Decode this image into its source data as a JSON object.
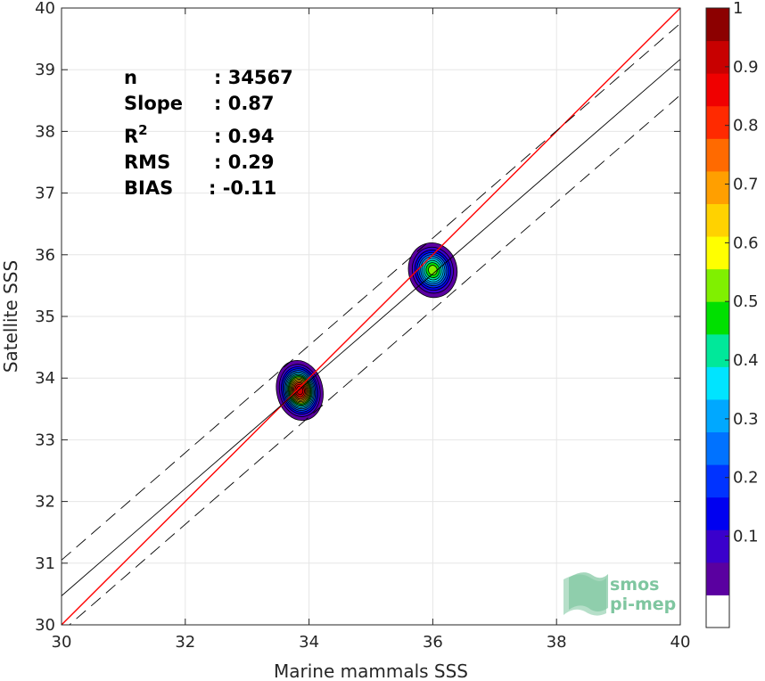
{
  "chart_data": {
    "type": "heatmap",
    "subtype": "density-scatter",
    "xlabel": "Marine mammals SSS",
    "ylabel": "Satellite SSS",
    "xlim": [
      30,
      40
    ],
    "ylim": [
      30,
      40
    ],
    "xticks": [
      "30",
      "32",
      "34",
      "36",
      "38",
      "40"
    ],
    "yticks": [
      "30",
      "31",
      "32",
      "33",
      "34",
      "35",
      "36",
      "37",
      "38",
      "39",
      "40"
    ],
    "grid": true,
    "stats": [
      {
        "label": "n",
        "value": ": 34567"
      },
      {
        "label": "Slope",
        "value": ": 0.87"
      },
      {
        "label": "R",
        "sup": "2",
        "value": ": 0.94"
      },
      {
        "label": "RMS",
        "value": ": 0.29"
      },
      {
        "label": "BIAS",
        "value": ": -0.11"
      }
    ],
    "lines": {
      "identity": {
        "slope": 1,
        "intercept": 0,
        "color": "#ff0000"
      },
      "fit": {
        "slope": 0.87,
        "x0": 30,
        "y0": 30.47,
        "color": "#000000"
      },
      "fit_band_offset": 0.58
    },
    "clusters": [
      {
        "cx": 33.85,
        "cy": 33.8,
        "sx": 0.38,
        "sy": 0.5,
        "peak": 1.0
      },
      {
        "cx": 36.0,
        "cy": 35.75,
        "sx": 0.44,
        "sy": 0.5,
        "peak": 0.6
      }
    ],
    "colorbar": {
      "ticks": [
        "0.1",
        "0.2",
        "0.3",
        "0.4",
        "0.5",
        "0.6",
        "0.7",
        "0.8",
        "0.9",
        "1"
      ],
      "colors": [
        "#ffffff",
        "#5a00a0",
        "#3a00cc",
        "#0000f0",
        "#0033ff",
        "#0072ff",
        "#00a8ff",
        "#00e4ff",
        "#00e89a",
        "#00e000",
        "#80f000",
        "#ffff00",
        "#ffd200",
        "#ff9f00",
        "#ff6a00",
        "#ff2a00",
        "#f00000",
        "#c80000",
        "#8c0000"
      ]
    }
  },
  "logo": {
    "line1": "smos",
    "line2": "pi-mep"
  }
}
